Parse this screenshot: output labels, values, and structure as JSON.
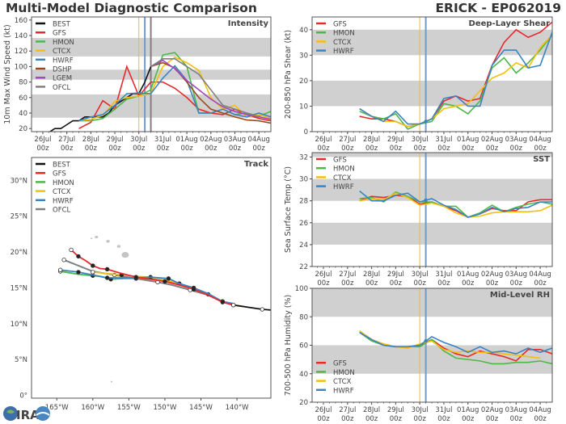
{
  "header": {
    "title": "Multi-Model Diagnostic Comparison",
    "storm": "ERICK - EP062019"
  },
  "logo": {
    "text": "CIRA"
  },
  "colors": {
    "BEST": "#111111",
    "GFS": "#e8282b",
    "HMON": "#4cb848",
    "CTCX": "#f3bf0f",
    "HWRF": "#3a84c4",
    "DSHP": "#9b4a1e",
    "LGEM": "#a347c4",
    "OFCL": "#808080",
    "band": "#d0d0d0",
    "land": "#c4c4c4"
  },
  "chart_data": [
    {
      "id": "intensity",
      "type": "line",
      "title": "Intensity",
      "ylabel": "10m Max Wind Speed (kt)",
      "ylim": [
        16,
        164
      ],
      "yticks": [
        20,
        40,
        60,
        80,
        100,
        120,
        140,
        160
      ],
      "bands": [
        [
          34,
          64
        ],
        [
          83,
          96
        ],
        [
          113,
          137
        ]
      ],
      "xticks": [
        "26Jul 00z",
        "27Jul 00z",
        "28Jul 00z",
        "29Jul 00z",
        "30Jul 00z",
        "31Jul 00z",
        "01Aug 00z",
        "02Aug 00z",
        "03Aug 00z",
        "04Aug 00z"
      ],
      "vlines": [
        {
          "t": "30Jul00z",
          "color": "#f3bf0f"
        },
        {
          "t": "30Jul06z",
          "color": "#6e9cc6"
        },
        {
          "t": "30Jul12z",
          "color": "#8a7a80"
        }
      ],
      "legend": {
        "position": "top-left",
        "entries": [
          "BEST",
          "GFS",
          "HMON",
          "CTCX",
          "HWRF",
          "DSHP",
          "LGEM",
          "OFCL"
        ]
      },
      "x": [
        "27Jul12z",
        "28Jul00z",
        "28Jul12z",
        "29Jul00z",
        "29Jul12z",
        "30Jul00z",
        "30Jul12z",
        "31Jul00z",
        "31Jul12z",
        "01Aug00z",
        "01Aug12z",
        "02Aug00z",
        "02Aug12z",
        "03Aug00z",
        "03Aug12z",
        "04Aug00z",
        "04Aug12z"
      ],
      "series": [
        {
          "name": "BEST",
          "x": [
            "25Jul18z",
            "26Jul00z",
            "26Jul06z",
            "26Jul12z",
            "26Jul18z",
            "27Jul00z",
            "27Jul06z",
            "27Jul12z",
            "27Jul18z",
            "28Jul00z",
            "28Jul06z",
            "28Jul12z",
            "28Jul18z",
            "29Jul00z",
            "29Jul06z",
            "29Jul12z",
            "29Jul18z",
            "30Jul00z",
            "30Jul06z",
            "30Jul12z"
          ],
          "values": [
            15,
            15,
            15,
            20,
            20,
            25,
            30,
            30,
            35,
            35,
            35,
            35,
            40,
            50,
            55,
            60,
            65,
            65,
            80,
            100
          ]
        },
        {
          "name": "GFS",
          "values": [
            20,
            28,
            56,
            45,
            100,
            62,
            80,
            80,
            72,
            60,
            45,
            40,
            38,
            45,
            38,
            33,
            30
          ]
        },
        {
          "name": "HMON",
          "values": [
            30,
            30,
            33,
            45,
            58,
            62,
            70,
            115,
            118,
            100,
            40,
            40,
            45,
            38,
            40,
            36,
            42
          ]
        },
        {
          "name": "CTCX",
          "values": [
            30,
            32,
            37,
            55,
            60,
            62,
            65,
            100,
            112,
            105,
            95,
            60,
            45,
            50,
            35,
            38,
            33
          ]
        },
        {
          "name": "HWRF",
          "values": [
            30,
            35,
            38,
            50,
            65,
            66,
            65,
            85,
            101,
            82,
            40,
            40,
            45,
            38,
            35,
            40,
            35
          ]
        },
        {
          "name": "DSHP",
          "x": [
            "30Jul12z",
            "31Jul00z",
            "31Jul12z",
            "01Aug00z",
            "01Aug12z",
            "02Aug00z",
            "02Aug12z",
            "03Aug00z",
            "03Aug12z",
            "04Aug00z",
            "04Aug12z"
          ],
          "values": [
            100,
            105,
            98,
            80,
            60,
            45,
            40,
            35,
            31,
            30,
            27
          ]
        },
        {
          "name": "LGEM",
          "x": [
            "30Jul12z",
            "31Jul00z",
            "31Jul12z",
            "01Aug00z",
            "01Aug12z",
            "02Aug00z",
            "02Aug12z",
            "03Aug00z",
            "03Aug12z",
            "04Aug00z",
            "04Aug12z"
          ],
          "values": [
            100,
            108,
            97,
            82,
            70,
            58,
            48,
            42,
            38,
            35,
            32
          ]
        },
        {
          "name": "OFCL",
          "x": [
            "30Jul12z",
            "31Jul00z",
            "31Jul12z",
            "01Aug00z",
            "01Aug12z",
            "02Aug00z",
            "02Aug12z",
            "03Aug00z",
            "03Aug12z",
            "04Aug00z"
          ],
          "values": [
            100,
            110,
            110,
            100,
            90,
            70,
            50,
            45,
            40,
            35
          ]
        }
      ]
    },
    {
      "id": "shear",
      "type": "line",
      "title": "Deep-Layer Shear",
      "ylabel": "200-850 hPa Shear (kt)",
      "ylim": [
        0,
        45
      ],
      "yticks": [
        0,
        10,
        20,
        30,
        40
      ],
      "bands": [
        [
          10,
          20
        ],
        [
          30,
          40
        ]
      ],
      "xticks": [
        "26Jul 00z",
        "27Jul 00z",
        "28Jul 00z",
        "29Jul 00z",
        "30Jul 00z",
        "31Jul 00z",
        "01Aug 00z",
        "02Aug 00z",
        "03Aug 00z",
        "04Aug 00z"
      ],
      "vlines": [
        {
          "t": "30Jul00z",
          "color": "#f3bf0f"
        },
        {
          "t": "30Jul06z",
          "color": "#6e9cc6"
        }
      ],
      "legend": {
        "position": "top-left",
        "entries": [
          "GFS",
          "HMON",
          "CTCX",
          "HWRF"
        ]
      },
      "x": [
        "27Jul12z",
        "28Jul00z",
        "28Jul12z",
        "29Jul00z",
        "29Jul12z",
        "30Jul00z",
        "30Jul12z",
        "31Jul00z",
        "31Jul12z",
        "01Aug00z",
        "01Aug12z",
        "02Aug00z",
        "02Aug12z",
        "03Aug00z",
        "03Aug12z",
        "04Aug00z",
        "04Aug12z"
      ],
      "series": [
        {
          "name": "GFS",
          "values": [
            6,
            5,
            5,
            4,
            2,
            3,
            5,
            12,
            14,
            12,
            13,
            26,
            35,
            40,
            37,
            39,
            43
          ]
        },
        {
          "name": "HMON",
          "values": [
            8,
            6,
            5,
            7,
            1,
            3,
            4,
            11,
            10,
            7,
            12,
            25,
            29,
            23,
            27,
            32,
            38
          ]
        },
        {
          "name": "CTCX",
          "values": [
            9,
            6,
            4,
            4,
            2,
            3,
            5,
            9,
            10,
            11,
            16,
            21,
            23,
            27,
            25,
            33,
            38
          ]
        },
        {
          "name": "HWRF",
          "values": [
            9,
            6,
            4,
            8,
            3,
            3,
            5,
            13,
            14,
            10,
            10,
            26,
            32,
            32,
            25,
            26,
            39
          ]
        }
      ]
    },
    {
      "id": "sst",
      "type": "line",
      "title": "SST",
      "ylabel": "Sea Surface Temp (°C)",
      "ylim": [
        22,
        32.4
      ],
      "yticks": [
        22,
        24,
        26,
        28,
        30,
        32
      ],
      "bands": [
        [
          24,
          26
        ],
        [
          28,
          30
        ],
        [
          32,
          33
        ]
      ],
      "xticks": [
        "26Jul 00z",
        "27Jul 00z",
        "28Jul 00z",
        "29Jul 00z",
        "30Jul 00z",
        "31Jul 00z",
        "01Aug 00z",
        "02Aug 00z",
        "03Aug 00z",
        "04Aug 00z"
      ],
      "vlines": [
        {
          "t": "30Jul00z",
          "color": "#f3bf0f"
        },
        {
          "t": "30Jul06z",
          "color": "#6e9cc6"
        }
      ],
      "legend": {
        "position": "top-left",
        "entries": [
          "GFS",
          "HMON",
          "CTCX",
          "HWRF"
        ]
      },
      "x": [
        "27Jul12z",
        "28Jul00z",
        "28Jul12z",
        "29Jul00z",
        "29Jul12z",
        "30Jul00z",
        "30Jul12z",
        "31Jul00z",
        "31Jul12z",
        "01Aug00z",
        "01Aug12z",
        "02Aug00z",
        "02Aug12z",
        "03Aug00z",
        "03Aug12z",
        "04Aug00z",
        "04Aug12z"
      ],
      "series": [
        {
          "name": "GFS",
          "values": [
            28.0,
            28.4,
            28.3,
            28.5,
            28.4,
            27.7,
            27.9,
            27.5,
            27.1,
            26.5,
            26.8,
            27.3,
            27.1,
            27.1,
            27.9,
            28.1,
            28.1
          ]
        },
        {
          "name": "HMON",
          "values": [
            28.2,
            28.3,
            27.9,
            28.8,
            28.4,
            27.9,
            27.9,
            27.5,
            27.5,
            26.5,
            26.9,
            27.6,
            27.0,
            27.4,
            27.7,
            27.9,
            27.7
          ]
        },
        {
          "name": "CTCX",
          "values": [
            28.0,
            28.2,
            28.1,
            28.7,
            28.3,
            27.6,
            27.8,
            27.5,
            26.9,
            26.5,
            26.6,
            26.9,
            27.0,
            27.0,
            27.0,
            27.1,
            27.6
          ]
        },
        {
          "name": "HWRF",
          "values": [
            28.9,
            28.0,
            28.0,
            28.5,
            28.7,
            27.9,
            28.2,
            27.6,
            27.2,
            26.5,
            26.8,
            27.4,
            27.0,
            27.3,
            27.4,
            27.9,
            27.9
          ]
        }
      ]
    },
    {
      "id": "rh",
      "type": "line",
      "title": "Mid-Level RH",
      "ylabel": "700-500 hPa Humidity (%)",
      "ylim": [
        20,
        100
      ],
      "yticks": [
        20,
        40,
        60,
        80,
        100
      ],
      "bands": [
        [
          40,
          60
        ],
        [
          80,
          100
        ]
      ],
      "xticks": [
        "26Jul 00z",
        "27Jul 00z",
        "28Jul 00z",
        "29Jul 00z",
        "30Jul 00z",
        "31Jul 00z",
        "01Aug 00z",
        "02Aug 00z",
        "03Aug 00z",
        "04Aug 00z"
      ],
      "vlines": [
        {
          "t": "30Jul00z",
          "color": "#f3bf0f"
        },
        {
          "t": "30Jul06z",
          "color": "#6e9cc6"
        }
      ],
      "legend": {
        "position": "bottom-left",
        "entries": [
          "GFS",
          "HMON",
          "CTCX",
          "HWRF"
        ]
      },
      "x": [
        "27Jul12z",
        "28Jul00z",
        "28Jul12z",
        "29Jul00z",
        "29Jul12z",
        "30Jul00z",
        "30Jul12z",
        "31Jul00z",
        "31Jul12z",
        "01Aug00z",
        "01Aug12z",
        "02Aug00z",
        "02Aug12z",
        "03Aug00z",
        "03Aug12z",
        "04Aug00z",
        "04Aug12z"
      ],
      "series": [
        {
          "name": "GFS",
          "values": [
            70,
            64,
            60,
            59,
            59,
            60,
            64,
            58,
            54,
            52,
            56,
            54,
            52,
            49,
            57,
            57,
            54
          ]
        },
        {
          "name": "HMON",
          "values": [
            69,
            63,
            60,
            59,
            59,
            59,
            64,
            56,
            51,
            50,
            49,
            47,
            47,
            48,
            48,
            49,
            47
          ]
        },
        {
          "name": "CTCX",
          "values": [
            70,
            64,
            61,
            59,
            58,
            61,
            63,
            57,
            55,
            56,
            55,
            55,
            54,
            53,
            52,
            51,
            null
          ]
        },
        {
          "name": "HWRF",
          "values": [
            69,
            64,
            60,
            59,
            59,
            60,
            66,
            62,
            59,
            55,
            59,
            55,
            56,
            54,
            58,
            55,
            58
          ]
        }
      ]
    },
    {
      "id": "track",
      "type": "line",
      "title": "Track",
      "xlim": [
        -168.5,
        -135.3
      ],
      "ylim": [
        -0.4,
        33.2
      ],
      "xticks": [
        [
          -165,
          "165°W"
        ],
        [
          -160,
          "160°W"
        ],
        [
          -155,
          "155°W"
        ],
        [
          -150,
          "150°W"
        ],
        [
          -145,
          "145°W"
        ],
        [
          -140,
          "140°W"
        ]
      ],
      "yticks": [
        [
          0,
          "0°"
        ],
        [
          5,
          "5°N"
        ],
        [
          10,
          "10°N"
        ],
        [
          15,
          "15°N"
        ],
        [
          20,
          "20°N"
        ],
        [
          25,
          "25°N"
        ],
        [
          30,
          "30°N"
        ]
      ],
      "legend": {
        "position": "top-left",
        "entries": [
          "BEST",
          "GFS",
          "HMON",
          "CTCX",
          "HWRF",
          "OFCL"
        ]
      },
      "series": [
        {
          "name": "BEST",
          "lon": [
            -135.3,
            -136.5,
            -138.5,
            -140.5
          ],
          "lat": [
            11.9,
            12.0,
            12.3,
            12.6
          ]
        },
        {
          "name": "GFS",
          "lon": [
            -140.5,
            -142,
            -144,
            -146,
            -148,
            -150,
            -152,
            -154,
            -156,
            -158,
            -159,
            -160,
            -161,
            -162,
            -163
          ],
          "lat": [
            12.6,
            13.0,
            14.0,
            14.8,
            15.4,
            15.9,
            16.2,
            16.5,
            17.0,
            17.6,
            17.7,
            18.1,
            18.8,
            19.4,
            20.3
          ]
        },
        {
          "name": "HMON",
          "lon": [
            -140.5,
            -142,
            -144,
            -146,
            -148,
            -150,
            -152,
            -154,
            -155.5,
            -157.5,
            -159,
            -160,
            -162,
            -164.5
          ],
          "lat": [
            12.6,
            13.1,
            14.1,
            14.8,
            15.5,
            15.9,
            16.3,
            16.3,
            16.3,
            16.2,
            16.6,
            16.7,
            16.9,
            17.3
          ]
        },
        {
          "name": "CTCX",
          "lon": [
            -139,
            -140.5,
            -142,
            -144,
            -146,
            -148,
            -150,
            -152,
            -154,
            -156,
            -158,
            -160
          ],
          "lat": [
            12.4,
            12.6,
            13.1,
            14.1,
            15.0,
            15.6,
            16.1,
            16.5,
            16.6,
            16.8,
            17.0,
            17.2
          ]
        },
        {
          "name": "HWRF",
          "lon": [
            -140.5,
            -142,
            -144,
            -146,
            -148,
            -149.5,
            -152,
            -154,
            -156,
            -158,
            -160,
            -162,
            -164.5
          ],
          "lat": [
            12.8,
            13.1,
            14.2,
            15.0,
            15.6,
            16.3,
            16.5,
            16.4,
            16.4,
            16.4,
            16.8,
            17.2,
            17.5
          ]
        },
        {
          "name": "OFCL",
          "lon": [
            -140.5,
            -142,
            -144,
            -146.5,
            -149,
            -151,
            -154,
            -157,
            -160,
            -164
          ],
          "lat": [
            12.6,
            13.1,
            14.0,
            14.7,
            15.4,
            15.8,
            16.3,
            16.8,
            17.3,
            18.9
          ]
        }
      ],
      "land": [
        {
          "lon": -155.5,
          "lat": 19.6,
          "r": 4.5
        },
        {
          "lon": -156.4,
          "lat": 20.8,
          "r": 2.2
        },
        {
          "lon": -157.9,
          "lat": 21.5,
          "r": 2.2
        },
        {
          "lon": -159.5,
          "lat": 22.1,
          "r": 2
        },
        {
          "lon": -160.2,
          "lat": 21.9,
          "r": 1.2
        },
        {
          "lon": -157.4,
          "lat": 1.9,
          "r": 1.2
        }
      ]
    }
  ]
}
